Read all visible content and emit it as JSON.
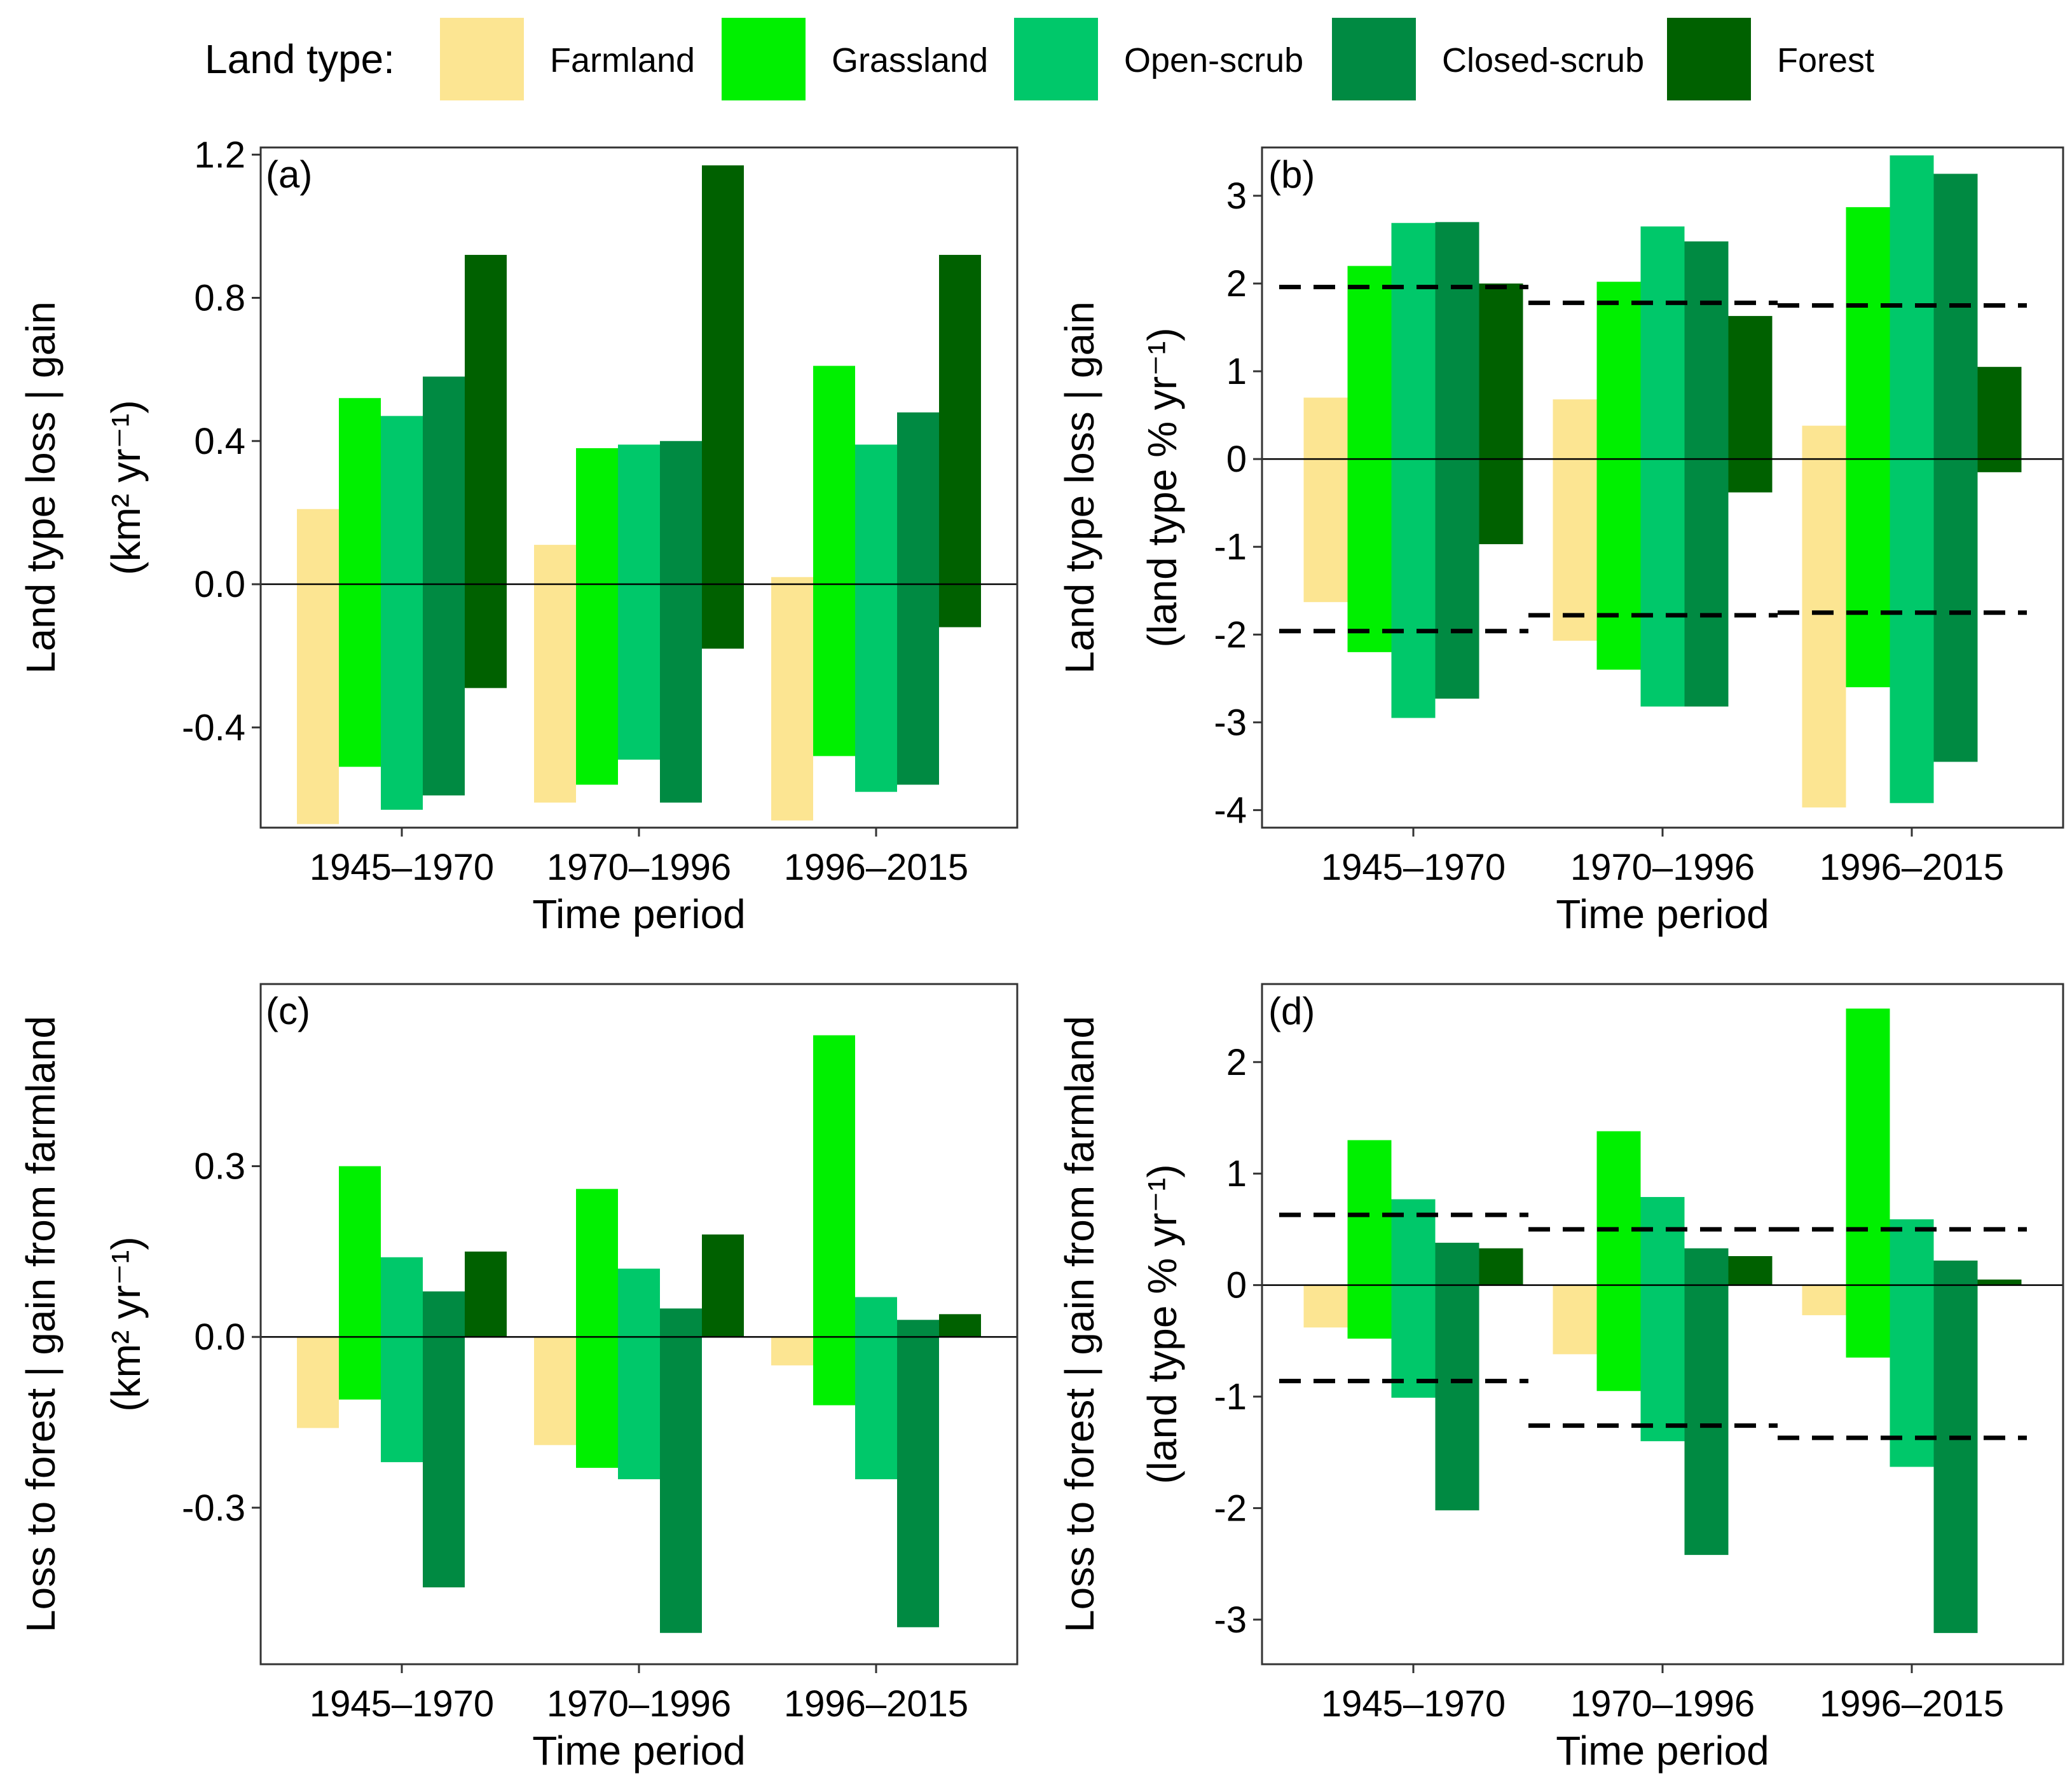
{
  "legend": {
    "title": "Land type:",
    "items": [
      {
        "label": "Farmland",
        "color": "#FCE592"
      },
      {
        "label": "Grassland",
        "color": "#00F000"
      },
      {
        "label": "Open-scrub",
        "color": "#00C86A"
      },
      {
        "label": "Closed-scrub",
        "color": "#008A42"
      },
      {
        "label": "Forest",
        "color": "#006100"
      }
    ]
  },
  "chart_data": [
    {
      "id": "a",
      "tag": "(a)",
      "type": "bar",
      "categories": [
        "1945–1970",
        "1970–1996",
        "1996–2015"
      ],
      "xlabel": "Time period",
      "ylabel": [
        "Land type loss | gain",
        "(km² yr⁻¹)"
      ],
      "ylim": [
        -0.68,
        1.22
      ],
      "yticks": [
        -0.4,
        0.0,
        0.4,
        0.8,
        1.2
      ],
      "ytick_labels": [
        "-0.4",
        "0.0",
        "0.4",
        "0.8",
        "1.2"
      ],
      "series": [
        {
          "name": "Farmland",
          "loss": [
            -0.67,
            -0.61,
            -0.66
          ],
          "gain": [
            0.21,
            0.11,
            0.02
          ]
        },
        {
          "name": "Grassland",
          "loss": [
            -0.51,
            -0.56,
            -0.48
          ],
          "gain": [
            0.52,
            0.38,
            0.61
          ]
        },
        {
          "name": "Open-scrub",
          "loss": [
            -0.63,
            -0.49,
            -0.58
          ],
          "gain": [
            0.47,
            0.39,
            0.39
          ]
        },
        {
          "name": "Closed-scrub",
          "loss": [
            -0.59,
            -0.61,
            -0.56
          ],
          "gain": [
            0.58,
            0.4,
            0.48
          ]
        },
        {
          "name": "Forest",
          "loss": [
            -0.29,
            -0.18,
            -0.12
          ],
          "gain": [
            0.92,
            1.17,
            0.92
          ]
        }
      ],
      "reference_lines": []
    },
    {
      "id": "b",
      "tag": "(b)",
      "type": "bar",
      "categories": [
        "1945–1970",
        "1970–1996",
        "1996–2015"
      ],
      "xlabel": "Time period",
      "ylabel": [
        "Land type loss | gain",
        "(land type % yr⁻¹)"
      ],
      "ylim": [
        -4.2,
        3.55
      ],
      "yticks": [
        -4,
        -3,
        -2,
        -1,
        0,
        1,
        2,
        3
      ],
      "ytick_labels": [
        "-4",
        "-3",
        "-2",
        "-1",
        "0",
        "1",
        "2",
        "3"
      ],
      "series": [
        {
          "name": "Farmland",
          "loss": [
            -1.63,
            -2.07,
            -3.97
          ],
          "gain": [
            0.7,
            0.68,
            0.38
          ]
        },
        {
          "name": "Grassland",
          "loss": [
            -2.2,
            -2.4,
            -2.6
          ],
          "gain": [
            2.2,
            2.02,
            2.87
          ]
        },
        {
          "name": "Open-scrub",
          "loss": [
            -2.95,
            -2.82,
            -3.92
          ],
          "gain": [
            2.69,
            2.65,
            3.46
          ]
        },
        {
          "name": "Closed-scrub",
          "loss": [
            -2.73,
            -2.82,
            -3.45
          ],
          "gain": [
            2.7,
            2.48,
            3.25
          ]
        },
        {
          "name": "Forest",
          "loss": [
            -0.97,
            -0.38,
            -0.15
          ],
          "gain": [
            2.0,
            1.63,
            1.05
          ]
        }
      ],
      "reference_lines": [
        {
          "period": 0,
          "upper": 1.96,
          "lower": -1.96
        },
        {
          "period": 1,
          "upper": 1.78,
          "lower": -1.78
        },
        {
          "period": 2,
          "upper": 1.75,
          "lower": -1.75
        }
      ]
    },
    {
      "id": "c",
      "tag": "(c)",
      "type": "bar",
      "categories": [
        "1945–1970",
        "1970–1996",
        "1996–2015"
      ],
      "xlabel": "Time period",
      "ylabel": [
        "Loss to forest | gain from farmland",
        "(km² yr⁻¹)"
      ],
      "ylim": [
        -0.575,
        0.62
      ],
      "yticks": [
        -0.3,
        0.0,
        0.3
      ],
      "ytick_labels": [
        "-0.3",
        "0.0",
        "0.3"
      ],
      "series": [
        {
          "name": "Farmland",
          "loss": [
            -0.16,
            -0.19,
            -0.05
          ],
          "gain": [
            0,
            0,
            0
          ]
        },
        {
          "name": "Grassland",
          "loss": [
            -0.11,
            -0.23,
            -0.12
          ],
          "gain": [
            0.3,
            0.26,
            0.53
          ]
        },
        {
          "name": "Open-scrub",
          "loss": [
            -0.22,
            -0.25,
            -0.25
          ],
          "gain": [
            0.14,
            0.12,
            0.07
          ]
        },
        {
          "name": "Closed-scrub",
          "loss": [
            -0.44,
            -0.52,
            -0.51
          ],
          "gain": [
            0.08,
            0.05,
            0.03
          ]
        },
        {
          "name": "Forest",
          "loss": [
            0,
            0,
            0
          ],
          "gain": [
            0.15,
            0.18,
            0.04
          ]
        }
      ],
      "reference_lines": []
    },
    {
      "id": "d",
      "tag": "(d)",
      "type": "bar",
      "categories": [
        "1945–1970",
        "1970–1996",
        "1996–2015"
      ],
      "xlabel": "Time period",
      "ylabel": [
        "Loss to forest | gain from farmland",
        "(land type % yr⁻¹)"
      ],
      "ylim": [
        -3.4,
        2.7
      ],
      "yticks": [
        -3,
        -2,
        -1,
        0,
        1,
        2
      ],
      "ytick_labels": [
        "-3",
        "-2",
        "-1",
        "0",
        "1",
        "2"
      ],
      "series": [
        {
          "name": "Farmland",
          "loss": [
            -0.38,
            -0.62,
            -0.27
          ],
          "gain": [
            0,
            0,
            0
          ]
        },
        {
          "name": "Grassland",
          "loss": [
            -0.48,
            -0.95,
            -0.65
          ],
          "gain": [
            1.3,
            1.38,
            2.48
          ]
        },
        {
          "name": "Open-scrub",
          "loss": [
            -1.01,
            -1.4,
            -1.63
          ],
          "gain": [
            0.77,
            0.79,
            0.59
          ]
        },
        {
          "name": "Closed-scrub",
          "loss": [
            -2.02,
            -2.42,
            -3.12
          ],
          "gain": [
            0.38,
            0.33,
            0.22
          ]
        },
        {
          "name": "Forest",
          "loss": [
            0,
            0,
            0
          ],
          "gain": [
            0.33,
            0.26,
            0.05
          ]
        }
      ],
      "reference_lines": [
        {
          "period": 0,
          "upper": 0.63,
          "lower": -0.86
        },
        {
          "period": 1,
          "upper": 0.5,
          "lower": -1.26
        },
        {
          "period": 2,
          "upper": 0.5,
          "lower": -1.37
        }
      ]
    }
  ]
}
